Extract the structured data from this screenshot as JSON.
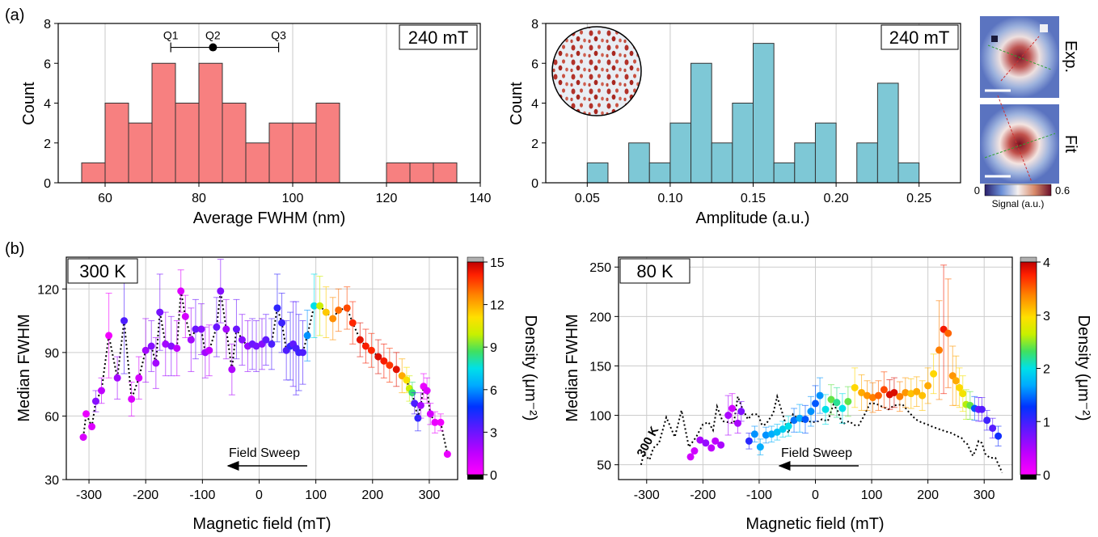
{
  "panel_labels": {
    "a": "(a)",
    "b": "(b)"
  },
  "chart_data": [
    {
      "id": "fwhm-hist",
      "type": "bar",
      "xlabel": "Average FWHM (nm)",
      "ylabel": "Count",
      "xlim": [
        50,
        140
      ],
      "ylim": [
        0,
        8
      ],
      "xticks": [
        60,
        80,
        100,
        120,
        140
      ],
      "yticks": [
        0,
        2,
        4,
        6,
        8
      ],
      "bin_width": 5,
      "bin_starts": [
        55,
        60,
        65,
        70,
        75,
        80,
        85,
        90,
        95,
        100,
        105,
        110,
        115,
        120,
        125,
        130
      ],
      "values": [
        1,
        4,
        3,
        6,
        4,
        6,
        4,
        2,
        3,
        3,
        4,
        0,
        0,
        1,
        1,
        1
      ],
      "color": "#f78080",
      "grid": "vertical",
      "box_label": "240 mT",
      "quartiles": {
        "labels": [
          "Q1",
          "Q2",
          "Q3"
        ],
        "values": [
          74,
          83,
          97
        ],
        "y": 6.8
      }
    },
    {
      "id": "amplitude-hist",
      "type": "bar",
      "xlabel": "Amplitude (a.u.)",
      "ylabel": "Count",
      "xlim": [
        0.025,
        0.275
      ],
      "ylim": [
        0,
        8
      ],
      "xticks": [
        0.05,
        0.1,
        0.15,
        0.2,
        0.25
      ],
      "xtick_labels": [
        "0.05",
        "0.10",
        "0.15",
        "0.20",
        "0.25"
      ],
      "yticks": [
        0,
        2,
        4,
        6,
        8
      ],
      "bin_width": 0.0125,
      "bin_starts": [
        0.05,
        0.0625,
        0.075,
        0.0875,
        0.1,
        0.1125,
        0.125,
        0.1375,
        0.15,
        0.1625,
        0.175,
        0.1875,
        0.2,
        0.2125,
        0.225,
        0.2375
      ],
      "values": [
        1,
        0,
        2,
        1,
        3,
        6,
        2,
        4,
        7,
        1,
        2,
        3,
        0,
        2,
        5,
        1
      ],
      "color": "#7ec8d6",
      "grid": "vertical",
      "box_label": "240 mT"
    },
    {
      "id": "fwhm-300k",
      "type": "scatter",
      "xlabel": "Magnetic field (mT)",
      "ylabel": "Median FWHM",
      "xlim": [
        -340,
        350
      ],
      "ylim": [
        30,
        135
      ],
      "xticks": [
        -300,
        -200,
        -100,
        0,
        100,
        200,
        300
      ],
      "yticks": [
        30,
        60,
        90,
        120
      ],
      "box_label": "300 K",
      "arrow_label": "Field Sweep",
      "colorbar": {
        "label": "Density (μm⁻²)",
        "min": 0,
        "max": 15,
        "ticks": [
          0,
          3,
          6,
          9,
          12,
          15
        ]
      },
      "points": [
        {
          "x": -310,
          "y": 50,
          "e": 0,
          "d": 0.9
        },
        {
          "x": -305,
          "y": 61,
          "e": 0,
          "d": 0.5
        },
        {
          "x": -295,
          "y": 55,
          "e": 0,
          "d": 0.8
        },
        {
          "x": -288,
          "y": 67,
          "e": 5,
          "d": 2.5
        },
        {
          "x": -278,
          "y": 72,
          "e": 6,
          "d": 1.5
        },
        {
          "x": -265,
          "y": 98,
          "e": 20,
          "d": 0.3
        },
        {
          "x": -250,
          "y": 78,
          "e": 10,
          "d": 2.0
        },
        {
          "x": -238,
          "y": 105,
          "e": 25,
          "d": 3.5
        },
        {
          "x": -225,
          "y": 68,
          "e": 8,
          "d": 0.8
        },
        {
          "x": -212,
          "y": 78,
          "e": 10,
          "d": 1.0
        },
        {
          "x": -200,
          "y": 91,
          "e": 15,
          "d": 2.0
        },
        {
          "x": -190,
          "y": 93,
          "e": 12,
          "d": 2.5
        },
        {
          "x": -182,
          "y": 85,
          "e": 12,
          "d": 2.0
        },
        {
          "x": -175,
          "y": 109,
          "e": 18,
          "d": 2.8
        },
        {
          "x": -165,
          "y": 94,
          "e": 15,
          "d": 2.0
        },
        {
          "x": -155,
          "y": 93,
          "e": 14,
          "d": 2.5
        },
        {
          "x": -145,
          "y": 92,
          "e": 13,
          "d": 1.5
        },
        {
          "x": -138,
          "y": 119,
          "e": 10,
          "d": 0.8
        },
        {
          "x": -130,
          "y": 107,
          "e": 10,
          "d": 1.0
        },
        {
          "x": -120,
          "y": 96,
          "e": 15,
          "d": 2.0
        },
        {
          "x": -112,
          "y": 101,
          "e": 14,
          "d": 3.0
        },
        {
          "x": -102,
          "y": 101,
          "e": 12,
          "d": 2.5
        },
        {
          "x": -95,
          "y": 90,
          "e": 12,
          "d": 2.0
        },
        {
          "x": -88,
          "y": 91,
          "e": 12,
          "d": 1.5
        },
        {
          "x": -75,
          "y": 102,
          "e": 14,
          "d": 3.0
        },
        {
          "x": -68,
          "y": 119,
          "e": 15,
          "d": 2.5
        },
        {
          "x": -58,
          "y": 101,
          "e": 14,
          "d": 2.0
        },
        {
          "x": -48,
          "y": 82,
          "e": 12,
          "d": 1.8
        },
        {
          "x": -40,
          "y": 101,
          "e": 14,
          "d": 3.0
        },
        {
          "x": -30,
          "y": 96,
          "e": 12,
          "d": 2.5
        },
        {
          "x": -20,
          "y": 93,
          "e": 12,
          "d": 2.2
        },
        {
          "x": -12,
          "y": 94,
          "e": 12,
          "d": 3.0
        },
        {
          "x": -5,
          "y": 93,
          "e": 12,
          "d": 2.8
        },
        {
          "x": 5,
          "y": 94,
          "e": 12,
          "d": 2.5
        },
        {
          "x": 12,
          "y": 96,
          "e": 12,
          "d": 3.2
        },
        {
          "x": 22,
          "y": 94,
          "e": 12,
          "d": 3.5
        },
        {
          "x": 32,
          "y": 111,
          "e": 16,
          "d": 4.0
        },
        {
          "x": 40,
          "y": 104,
          "e": 14,
          "d": 3.8
        },
        {
          "x": 48,
          "y": 91,
          "e": 14,
          "d": 3.5
        },
        {
          "x": 55,
          "y": 93,
          "e": 16,
          "d": 4.0
        },
        {
          "x": 60,
          "y": 94,
          "e": 20,
          "d": 3.2
        },
        {
          "x": 65,
          "y": 92,
          "e": 22,
          "d": 3.5
        },
        {
          "x": 70,
          "y": 90,
          "e": 18,
          "d": 3.8
        },
        {
          "x": 77,
          "y": 90,
          "e": 15,
          "d": 3.5
        },
        {
          "x": 85,
          "y": 98,
          "e": 12,
          "d": 6.0
        },
        {
          "x": 97,
          "y": 112,
          "e": 15,
          "d": 7.5
        },
        {
          "x": 107,
          "y": 112,
          "e": 14,
          "d": 10.0
        },
        {
          "x": 118,
          "y": 109,
          "e": 12,
          "d": 11.5
        },
        {
          "x": 130,
          "y": 106,
          "e": 10,
          "d": 12.5
        },
        {
          "x": 140,
          "y": 110,
          "e": 10,
          "d": 13.0
        },
        {
          "x": 155,
          "y": 111,
          "e": 10,
          "d": 13.5
        },
        {
          "x": 165,
          "y": 104,
          "e": 10,
          "d": 14.0
        },
        {
          "x": 178,
          "y": 96,
          "e": 8,
          "d": 14.5
        },
        {
          "x": 188,
          "y": 93,
          "e": 8,
          "d": 14.2
        },
        {
          "x": 198,
          "y": 91,
          "e": 8,
          "d": 14.0
        },
        {
          "x": 210,
          "y": 88,
          "e": 8,
          "d": 14.6
        },
        {
          "x": 220,
          "y": 86,
          "e": 8,
          "d": 14.2
        },
        {
          "x": 230,
          "y": 84,
          "e": 8,
          "d": 13.8
        },
        {
          "x": 242,
          "y": 82,
          "e": 8,
          "d": 14.5
        },
        {
          "x": 252,
          "y": 79,
          "e": 8,
          "d": 12.0
        },
        {
          "x": 260,
          "y": 77,
          "e": 6,
          "d": 11.0
        },
        {
          "x": 265,
          "y": 73,
          "e": 6,
          "d": 10.0
        },
        {
          "x": 270,
          "y": 71,
          "e": 5,
          "d": 8.5
        },
        {
          "x": 274,
          "y": 66,
          "e": 5,
          "d": 3.5
        },
        {
          "x": 280,
          "y": 59,
          "e": 6,
          "d": 4.0
        },
        {
          "x": 285,
          "y": 65,
          "e": 6,
          "d": 2.0
        },
        {
          "x": 290,
          "y": 74,
          "e": 6,
          "d": 0.5
        },
        {
          "x": 296,
          "y": 72,
          "e": 6,
          "d": 0.8
        },
        {
          "x": 302,
          "y": 61,
          "e": 5,
          "d": 1.0
        },
        {
          "x": 310,
          "y": 57,
          "e": 5,
          "d": 0.5
        },
        {
          "x": 320,
          "y": 57,
          "e": 4,
          "d": 0.3
        },
        {
          "x": 332,
          "y": 42,
          "e": 0,
          "d": 0.5
        }
      ]
    },
    {
      "id": "fwhm-80k",
      "type": "scatter",
      "xlabel": "Magnetic field (mT)",
      "ylabel": "Median FWHM",
      "xlim": [
        -350,
        350
      ],
      "ylim": [
        35,
        260
      ],
      "xticks": [
        -300,
        -200,
        -100,
        0,
        100,
        200,
        300
      ],
      "yticks": [
        50,
        100,
        150,
        200,
        250
      ],
      "box_label": "80 K",
      "arrow_label": "Field Sweep",
      "reference_label": "300 K",
      "colorbar": {
        "label": "Density (μm⁻²)",
        "min": 0,
        "max": 4,
        "ticks": [
          0,
          1,
          2,
          3,
          4
        ]
      },
      "points": [
        {
          "x": -222,
          "y": 58,
          "e": 0,
          "d": 0.3
        },
        {
          "x": -215,
          "y": 64,
          "e": 0,
          "d": 0.3
        },
        {
          "x": -205,
          "y": 75,
          "e": 0,
          "d": 0.5
        },
        {
          "x": -195,
          "y": 72,
          "e": 0,
          "d": 0.6
        },
        {
          "x": -185,
          "y": 67,
          "e": 0,
          "d": 0.4
        },
        {
          "x": -178,
          "y": 74,
          "e": 0,
          "d": 0.4
        },
        {
          "x": -168,
          "y": 70,
          "e": 0,
          "d": 0.5
        },
        {
          "x": -155,
          "y": 100,
          "e": 20,
          "d": 0.5
        },
        {
          "x": -148,
          "y": 107,
          "e": 15,
          "d": 0.3
        },
        {
          "x": -138,
          "y": 92,
          "e": 10,
          "d": 0.5
        },
        {
          "x": -132,
          "y": 104,
          "e": 10,
          "d": 0.7
        },
        {
          "x": -118,
          "y": 74,
          "e": 8,
          "d": 1.1
        },
        {
          "x": -108,
          "y": 81,
          "e": 8,
          "d": 1.6
        },
        {
          "x": -98,
          "y": 68,
          "e": 8,
          "d": 1.7
        },
        {
          "x": -88,
          "y": 80,
          "e": 8,
          "d": 1.6
        },
        {
          "x": -78,
          "y": 81,
          "e": 8,
          "d": 1.7
        },
        {
          "x": -68,
          "y": 83,
          "e": 8,
          "d": 1.8
        },
        {
          "x": -58,
          "y": 86,
          "e": 8,
          "d": 1.9
        },
        {
          "x": -48,
          "y": 89,
          "e": 10,
          "d": 2.0
        },
        {
          "x": -38,
          "y": 95,
          "e": 12,
          "d": 1.5
        },
        {
          "x": -28,
          "y": 97,
          "e": 14,
          "d": 1.7
        },
        {
          "x": -18,
          "y": 96,
          "e": 14,
          "d": 1.4
        },
        {
          "x": -8,
          "y": 104,
          "e": 15,
          "d": 1.6
        },
        {
          "x": 0,
          "y": 112,
          "e": 18,
          "d": 1.4
        },
        {
          "x": 8,
          "y": 120,
          "e": 18,
          "d": 1.6
        },
        {
          "x": 18,
          "y": 106,
          "e": 15,
          "d": 2.0
        },
        {
          "x": 28,
          "y": 116,
          "e": 15,
          "d": 2.4
        },
        {
          "x": 38,
          "y": 113,
          "e": 15,
          "d": 2.2
        },
        {
          "x": 48,
          "y": 107,
          "e": 15,
          "d": 2.0
        },
        {
          "x": 58,
          "y": 114,
          "e": 15,
          "d": 2.4
        },
        {
          "x": 70,
          "y": 128,
          "e": 20,
          "d": 3.0
        },
        {
          "x": 82,
          "y": 123,
          "e": 18,
          "d": 3.2
        },
        {
          "x": 92,
          "y": 120,
          "e": 15,
          "d": 3.3
        },
        {
          "x": 102,
          "y": 118,
          "e": 15,
          "d": 3.4
        },
        {
          "x": 112,
          "y": 120,
          "e": 15,
          "d": 3.5
        },
        {
          "x": 122,
          "y": 126,
          "e": 18,
          "d": 3.6
        },
        {
          "x": 132,
          "y": 121,
          "e": 15,
          "d": 3.9
        },
        {
          "x": 140,
          "y": 123,
          "e": 15,
          "d": 3.9
        },
        {
          "x": 150,
          "y": 119,
          "e": 15,
          "d": 3.4
        },
        {
          "x": 160,
          "y": 123,
          "e": 15,
          "d": 3.3
        },
        {
          "x": 170,
          "y": 122,
          "e": 15,
          "d": 3.1
        },
        {
          "x": 180,
          "y": 124,
          "e": 15,
          "d": 3.2
        },
        {
          "x": 190,
          "y": 120,
          "e": 15,
          "d": 3.1
        },
        {
          "x": 200,
          "y": 130,
          "e": 18,
          "d": 3.2
        },
        {
          "x": 210,
          "y": 142,
          "e": 20,
          "d": 3.0
        },
        {
          "x": 220,
          "y": 166,
          "e": 50,
          "d": 3.4
        },
        {
          "x": 228,
          "y": 187,
          "e": 65,
          "d": 3.8
        },
        {
          "x": 236,
          "y": 183,
          "e": 55,
          "d": 3.5
        },
        {
          "x": 244,
          "y": 140,
          "e": 30,
          "d": 3.3
        },
        {
          "x": 250,
          "y": 135,
          "e": 25,
          "d": 3.2
        },
        {
          "x": 256,
          "y": 128,
          "e": 20,
          "d": 3.0
        },
        {
          "x": 262,
          "y": 122,
          "e": 18,
          "d": 2.9
        },
        {
          "x": 268,
          "y": 111,
          "e": 15,
          "d": 2.6
        },
        {
          "x": 275,
          "y": 110,
          "e": 14,
          "d": 2.4
        },
        {
          "x": 283,
          "y": 107,
          "e": 12,
          "d": 1.4
        },
        {
          "x": 290,
          "y": 106,
          "e": 12,
          "d": 0.8
        },
        {
          "x": 296,
          "y": 106,
          "e": 12,
          "d": 0.9
        },
        {
          "x": 305,
          "y": 95,
          "e": 10,
          "d": 1.0
        },
        {
          "x": 315,
          "y": 87,
          "e": 10,
          "d": 0.9
        },
        {
          "x": 325,
          "y": 79,
          "e": 10,
          "d": 1.2
        }
      ]
    }
  ],
  "inset_images": {
    "exp_label": "Exp.",
    "fit_label": "Fit",
    "colorbar_min": "0",
    "colorbar_max": "0.6",
    "colorbar_label": "Signal (a.u.)"
  }
}
